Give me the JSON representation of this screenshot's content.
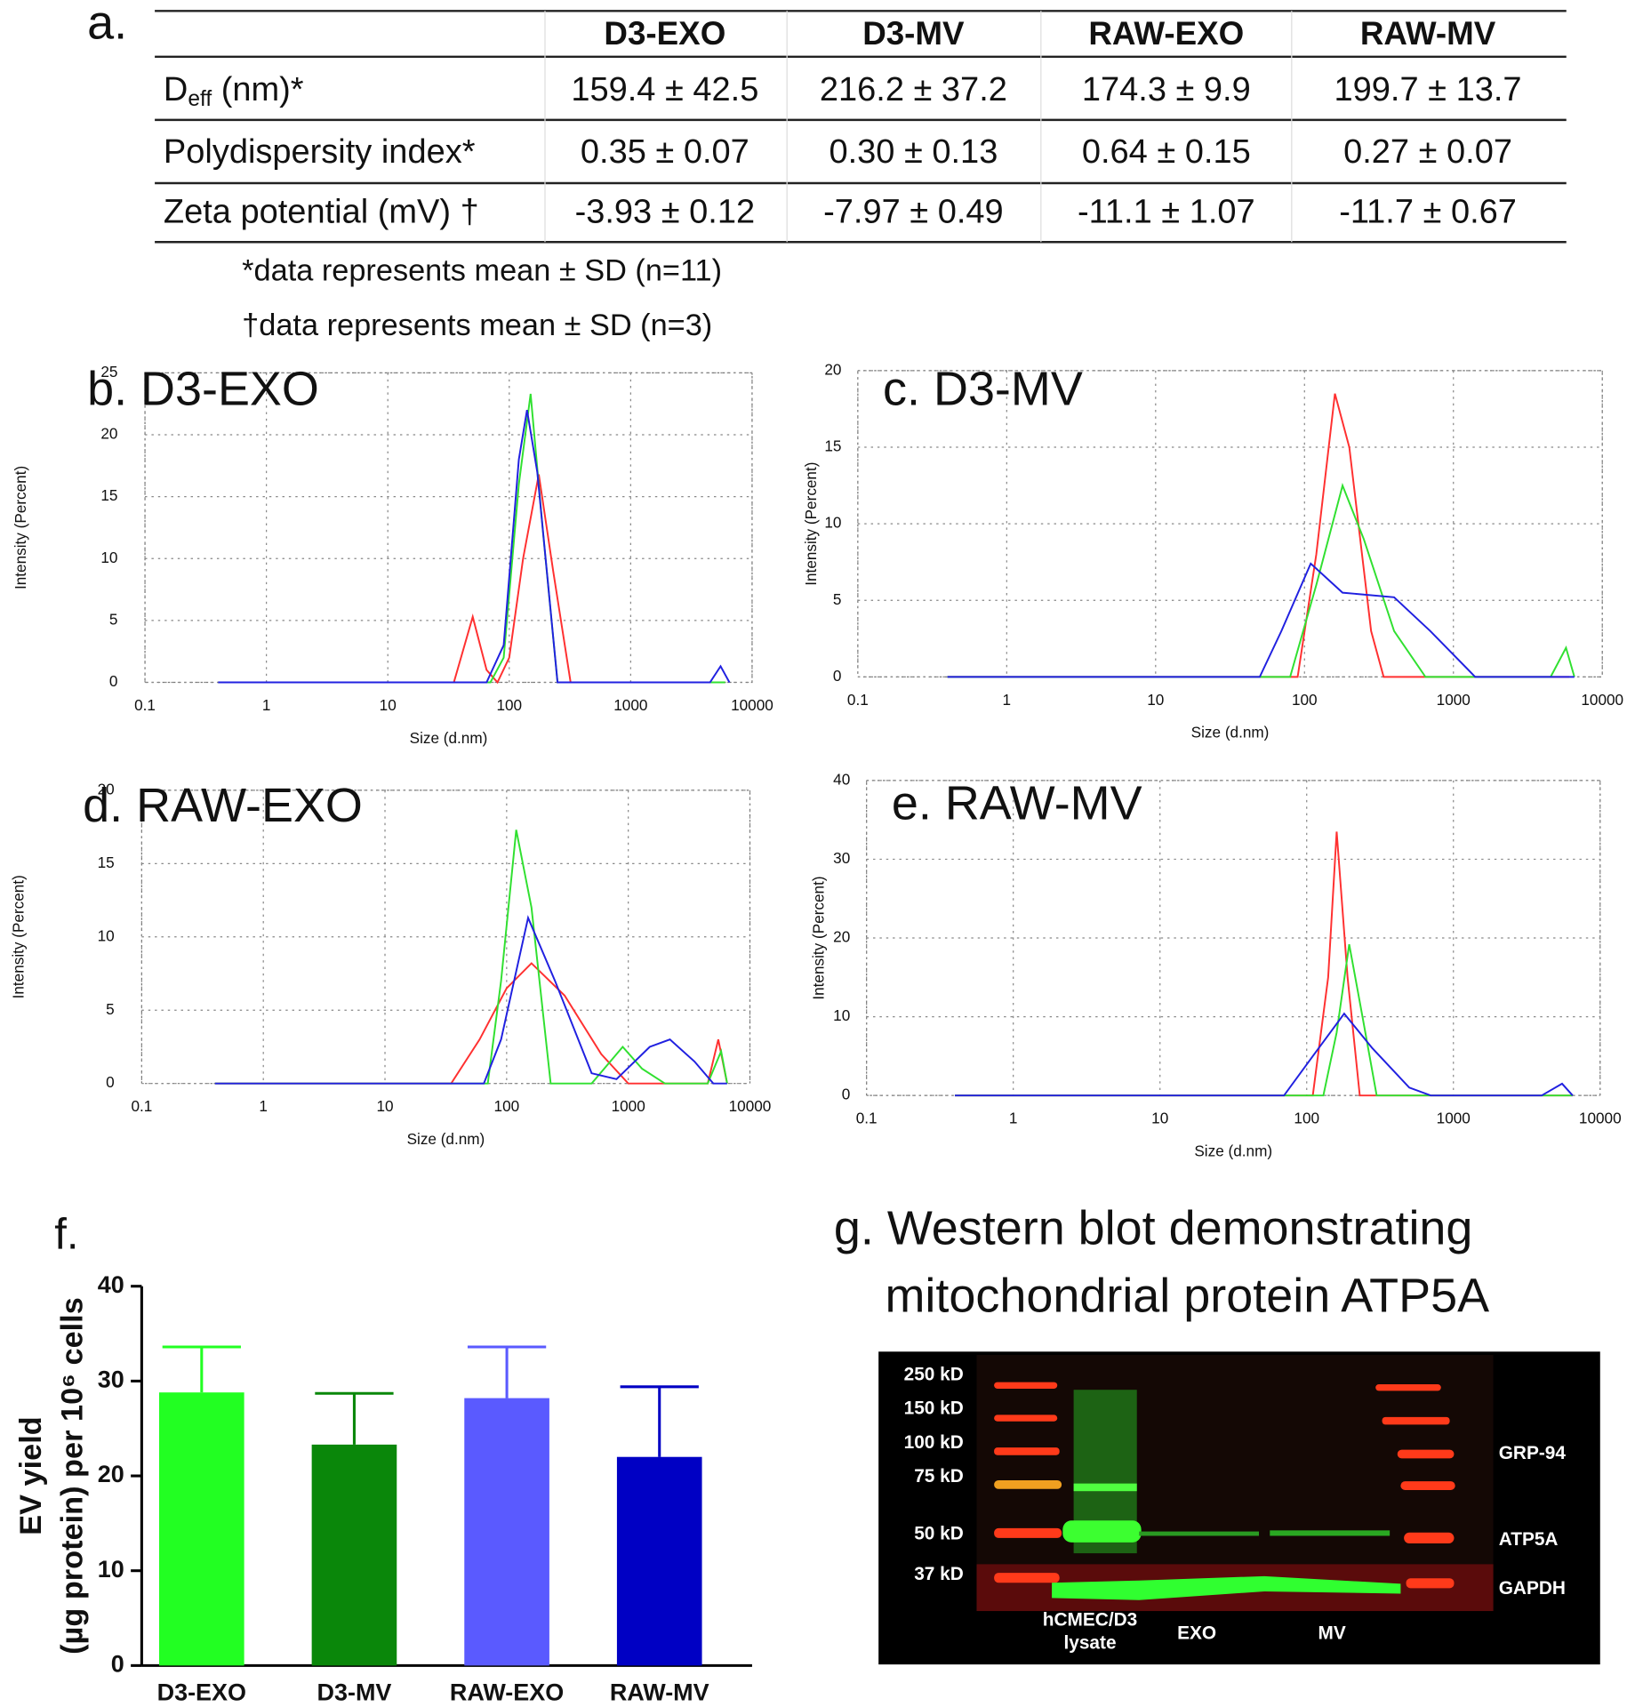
{
  "table": {
    "panel_label": "a.",
    "columns": [
      "D3-EXO",
      "D3-MV",
      "RAW-EXO",
      "RAW-MV"
    ],
    "rows": [
      {
        "label": [
          "D",
          "eff",
          " (nm)*"
        ],
        "cells": [
          "159.4 ± 42.5",
          "216.2 ± 37.2",
          "174.3 ± 9.9",
          "199.7 ± 13.7"
        ]
      },
      {
        "label": [
          "Polydispersity index*"
        ],
        "cells": [
          "0.35 ± 0.07",
          "0.30 ± 0.13",
          "0.64 ± 0.15",
          "0.27 ± 0.07"
        ]
      },
      {
        "label": [
          "Zeta potential (mV) †"
        ],
        "cells": [
          "-3.93 ± 0.12",
          "-7.97 ± 0.49",
          "-11.1 ± 1.07",
          "-11.7 ± 0.67"
        ]
      }
    ],
    "notes": [
      "*data represents mean ± SD (n=11)",
      "†data represents mean ± SD (n=3)"
    ]
  },
  "chart_data": [
    {
      "type": "line",
      "title": "b. D3-EXO",
      "x_label": "Size (d.nm)",
      "y_label": "Intensity (Percent)",
      "xscale": "log",
      "xlim": [
        0.1,
        10000
      ],
      "xticks": [
        0.1,
        1,
        10,
        100,
        1000,
        10000
      ],
      "ylim": [
        0,
        25
      ],
      "yticks": [
        0,
        5,
        10,
        15,
        20,
        25
      ],
      "grid": true,
      "series": [
        {
          "color": "#ff3030",
          "x": [
            0.4,
            35,
            50,
            65,
            80,
            100,
            130,
            175,
            230,
            320,
            6000
          ],
          "values": [
            0,
            0,
            5.3,
            1,
            0,
            2,
            10,
            16.8,
            9,
            0,
            0
          ]
        },
        {
          "color": "#30e030",
          "x": [
            0.4,
            70,
            90,
            120,
            150,
            190,
            250,
            6000
          ],
          "values": [
            0,
            0,
            2,
            16,
            23.3,
            12,
            0,
            0
          ]
        },
        {
          "color": "#2020e0",
          "x": [
            0.4,
            65,
            90,
            120,
            140,
            170,
            250,
            4500,
            5500,
            6500
          ],
          "values": [
            0,
            0,
            3,
            18,
            22,
            17,
            0,
            0,
            1.3,
            0
          ]
        }
      ]
    },
    {
      "type": "line",
      "title": "c. D3-MV",
      "x_label": "Size (d.nm)",
      "y_label": "Intensity (Percent)",
      "xscale": "log",
      "xlim": [
        0.1,
        10000
      ],
      "xticks": [
        0.1,
        1,
        10,
        100,
        1000,
        10000
      ],
      "ylim": [
        0,
        20
      ],
      "yticks": [
        0,
        5,
        10,
        15,
        20
      ],
      "grid": true,
      "series": [
        {
          "color": "#ff3030",
          "x": [
            0.4,
            90,
            120,
            160,
            200,
            280,
            340,
            6000
          ],
          "values": [
            0,
            0,
            8,
            18.5,
            15,
            3,
            0,
            0
          ]
        },
        {
          "color": "#30e030",
          "x": [
            0.4,
            80,
            120,
            180,
            250,
            400,
            650,
            4500,
            5700,
            6500
          ],
          "values": [
            0,
            0,
            6,
            12.5,
            9,
            3,
            0,
            0,
            1.9,
            0
          ]
        },
        {
          "color": "#2020e0",
          "x": [
            0.4,
            50,
            70,
            110,
            180,
            400,
            700,
            1400,
            6500
          ],
          "values": [
            0,
            0,
            3,
            7.4,
            5.5,
            5.2,
            3,
            0,
            0
          ]
        }
      ]
    },
    {
      "type": "line",
      "title": "d. RAW-EXO",
      "x_label": "Size (d.nm)",
      "y_label": "Intensity (Percent)",
      "xscale": "log",
      "xlim": [
        0.1,
        10000
      ],
      "xticks": [
        0.1,
        1,
        10,
        100,
        1000,
        10000
      ],
      "ylim": [
        0,
        20
      ],
      "yticks": [
        0,
        5,
        10,
        15,
        20
      ],
      "grid": true,
      "series": [
        {
          "color": "#ff3030",
          "x": [
            0.4,
            35,
            60,
            100,
            160,
            300,
            600,
            1000,
            4500,
            5500,
            6500
          ],
          "values": [
            0,
            0,
            3,
            6.5,
            8.2,
            6,
            2,
            0,
            0,
            3,
            0
          ]
        },
        {
          "color": "#30e030",
          "x": [
            0.4,
            70,
            90,
            120,
            160,
            230,
            500,
            900,
            1300,
            2000,
            4500,
            5800,
            6500
          ],
          "values": [
            0,
            0,
            7,
            17.3,
            12,
            0,
            0,
            2.5,
            1,
            0,
            0,
            2.2,
            0
          ]
        },
        {
          "color": "#2020e0",
          "x": [
            0.4,
            65,
            90,
            150,
            250,
            500,
            800,
            1500,
            2200,
            3500,
            5000,
            6500
          ],
          "values": [
            0,
            0,
            3,
            11.3,
            7,
            0.7,
            0.3,
            2.5,
            3,
            1.5,
            0,
            0
          ]
        }
      ]
    },
    {
      "type": "line",
      "title": "e. RAW-MV",
      "x_label": "Size (d.nm)",
      "y_label": "Intensity (Percent)",
      "xscale": "log",
      "xlim": [
        0.1,
        10000
      ],
      "xticks": [
        0.1,
        1,
        10,
        100,
        1000,
        10000
      ],
      "ylim": [
        0,
        40
      ],
      "yticks": [
        0,
        10,
        20,
        30,
        40
      ],
      "grid": true,
      "series": [
        {
          "color": "#ff3030",
          "x": [
            0.4,
            110,
            140,
            160,
            190,
            230,
            6500
          ],
          "values": [
            0,
            0,
            15,
            33.5,
            15,
            0,
            0
          ]
        },
        {
          "color": "#30e030",
          "x": [
            0.4,
            130,
            160,
            195,
            240,
            300,
            6500
          ],
          "values": [
            0,
            0,
            8,
            19.2,
            10,
            0,
            0
          ]
        },
        {
          "color": "#2020e0",
          "x": [
            0.4,
            70,
            110,
            180,
            280,
            500,
            700,
            4000,
            5500,
            6500
          ],
          "values": [
            0,
            0,
            5,
            10.4,
            6,
            1,
            0,
            0,
            1.5,
            0
          ]
        }
      ]
    },
    {
      "type": "bar",
      "title": "f.",
      "y_label": [
        "EV yield",
        "(µg protein) per 10⁶ cells"
      ],
      "categories": [
        "D3-EXO",
        "D3-MV",
        "RAW-EXO",
        "RAW-MV"
      ],
      "values": [
        28.8,
        23.3,
        28.2,
        22.0
      ],
      "errors": [
        4.8,
        5.4,
        5.4,
        7.4
      ],
      "colors": [
        "#22ff22",
        "#0a870a",
        "#5a5aff",
        "#0000c4"
      ],
      "ylim": [
        0,
        40
      ],
      "yticks": [
        0,
        10,
        20,
        30,
        40
      ]
    }
  ],
  "blot": {
    "title": [
      "g. Western blot demonstrating",
      "mitochondrial protein ATP5A"
    ],
    "markers": [
      "250 kD",
      "150 kD",
      "100 kD",
      "75 kD",
      "50 kD",
      "37 kD"
    ],
    "proteins": [
      "GRP-94",
      "ATP5A",
      "GAPDH"
    ],
    "lanes": [
      [
        "hCMEC/D3",
        "lysate"
      ],
      [
        "EXO"
      ],
      [
        "MV"
      ]
    ]
  }
}
